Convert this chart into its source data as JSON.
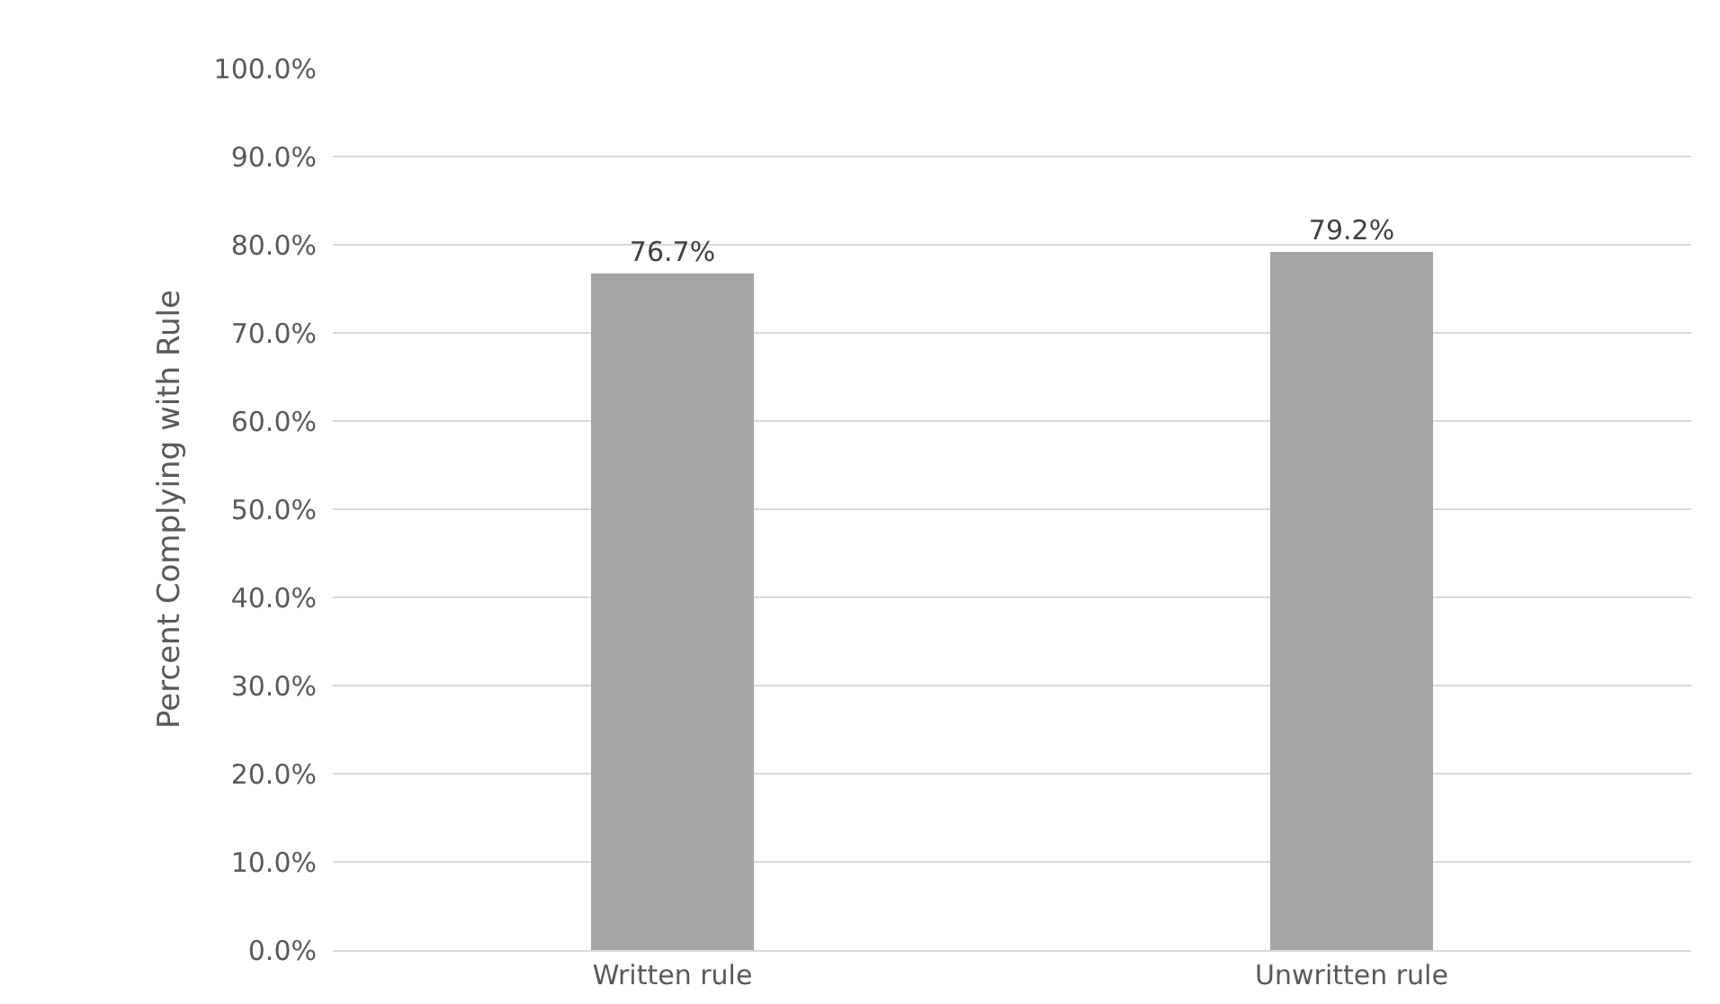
{
  "chart_data": {
    "type": "bar",
    "ylabel": "Percent Complying with Rule",
    "categories": [
      "Written rule",
      "Unwritten rule"
    ],
    "values": [
      76.7,
      79.2
    ],
    "value_labels": [
      "76.7%",
      "79.2%"
    ],
    "color": "#a5a5a5",
    "ylim": [
      0,
      100
    ],
    "yticks": [
      {
        "value": 0,
        "label": "0.0%"
      },
      {
        "value": 10,
        "label": "10.0%"
      },
      {
        "value": 20,
        "label": "20.0%"
      },
      {
        "value": 30,
        "label": "30.0%"
      },
      {
        "value": 40,
        "label": "40.0%"
      },
      {
        "value": 50,
        "label": "50.0%"
      },
      {
        "value": 60,
        "label": "60.0%"
      },
      {
        "value": 70,
        "label": "70.0%"
      },
      {
        "value": 80,
        "label": "80.0%"
      },
      {
        "value": 90,
        "label": "90.0%"
      },
      {
        "value": 100,
        "label": "100.0%"
      }
    ],
    "grid": "y",
    "legend": false
  }
}
